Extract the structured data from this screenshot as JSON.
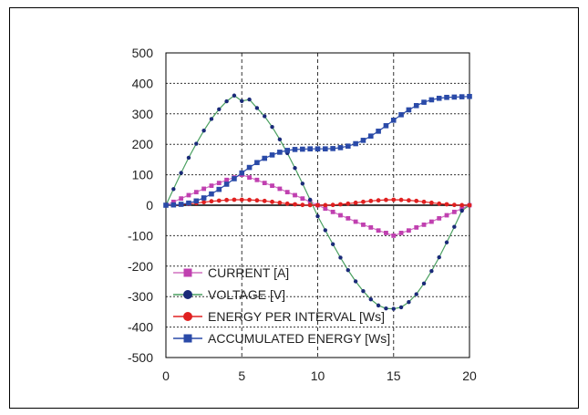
{
  "chart_data": {
    "type": "line",
    "title": "",
    "xlabel": "",
    "ylabel": "",
    "xlim": [
      0,
      20
    ],
    "ylim": [
      -500,
      500
    ],
    "x_ticks": [
      "0",
      "5",
      "10",
      "15",
      "20"
    ],
    "y_ticks": [
      "500",
      "400",
      "300",
      "200",
      "100",
      "0",
      "-100",
      "-200",
      "-300",
      "-400",
      "-500"
    ],
    "grid": true,
    "legend_position": "bottom-left",
    "x": [
      0,
      0.5,
      1,
      1.5,
      2,
      2.5,
      3,
      3.5,
      4,
      4.5,
      5,
      5.5,
      6,
      6.5,
      7,
      7.5,
      8,
      8.5,
      9,
      9.5,
      10,
      10.5,
      11,
      11.5,
      12,
      12.5,
      13,
      13.5,
      14,
      14.5,
      15,
      15.5,
      16,
      16.5,
      17,
      17.5,
      18,
      18.5,
      19,
      19.5,
      20
    ],
    "series": [
      {
        "name": "CURRENT [A]",
        "color": "#c040b0",
        "marker": "square",
        "values": [
          0,
          11,
          22,
          33,
          43,
          54,
          64,
          73,
          83,
          91,
          100,
          91,
          83,
          73,
          64,
          54,
          43,
          33,
          22,
          11,
          0,
          -11,
          -22,
          -33,
          -43,
          -54,
          -64,
          -73,
          -83,
          -91,
          -100,
          -91,
          -83,
          -73,
          -64,
          -54,
          -43,
          -33,
          -22,
          -11,
          0
        ]
      },
      {
        "name": "VOLTAGE [V]",
        "color": "#1a2a78",
        "marker": "circle",
        "values": [
          0,
          53,
          106,
          156,
          202,
          245,
          283,
          315,
          341,
          360,
          342,
          347,
          319,
          292,
          257,
          216,
          171,
          122,
          71,
          18,
          -36,
          -82,
          -128,
          -172,
          -213,
          -250,
          -282,
          -309,
          -329,
          -339,
          -340,
          -335,
          -318,
          -292,
          -257,
          -216,
          -171,
          -122,
          -71,
          -18,
          0
        ]
      },
      {
        "name": "ENERGY PER INTERVAL [Ws]",
        "color": "#e02020",
        "marker": "circle",
        "values": [
          0,
          0.5,
          2,
          4,
          7,
          10,
          13,
          15,
          17,
          18,
          18,
          17.5,
          16,
          14,
          11,
          8,
          5,
          3,
          1,
          0.3,
          0,
          0.3,
          1,
          3,
          5,
          8,
          11,
          14,
          16,
          17.5,
          18,
          17.5,
          16,
          14,
          11,
          8,
          5,
          3,
          1,
          0.3,
          0
        ]
      },
      {
        "name": "ACCUMULATED ENERGY [Ws]",
        "color": "#2a4aa8",
        "marker": "square",
        "values": [
          0,
          1,
          3,
          7,
          14,
          24,
          37,
          52,
          69,
          87,
          106,
          124,
          140,
          154,
          165,
          174,
          180,
          183,
          184,
          185,
          185,
          185,
          186,
          189,
          194,
          202,
          213,
          227,
          243,
          261,
          279,
          297,
          313,
          327,
          338,
          346,
          351,
          354,
          355,
          356,
          357
        ]
      }
    ]
  }
}
